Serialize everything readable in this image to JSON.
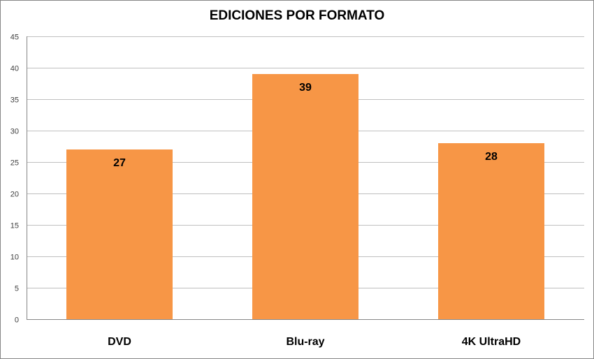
{
  "chart_data": {
    "type": "bar",
    "title": "EDICIONES POR FORMATO",
    "categories": [
      "DVD",
      "Blu-ray",
      "4K UltraHD"
    ],
    "values": [
      27,
      39,
      28
    ],
    "xlabel": "",
    "ylabel": "",
    "ylim": [
      0,
      45
    ],
    "yticks": [
      "0",
      "5",
      "10",
      "15",
      "20",
      "25",
      "30",
      "35",
      "40",
      "45"
    ],
    "grid": true,
    "legend": "none",
    "bar_color": "#F79646"
  }
}
